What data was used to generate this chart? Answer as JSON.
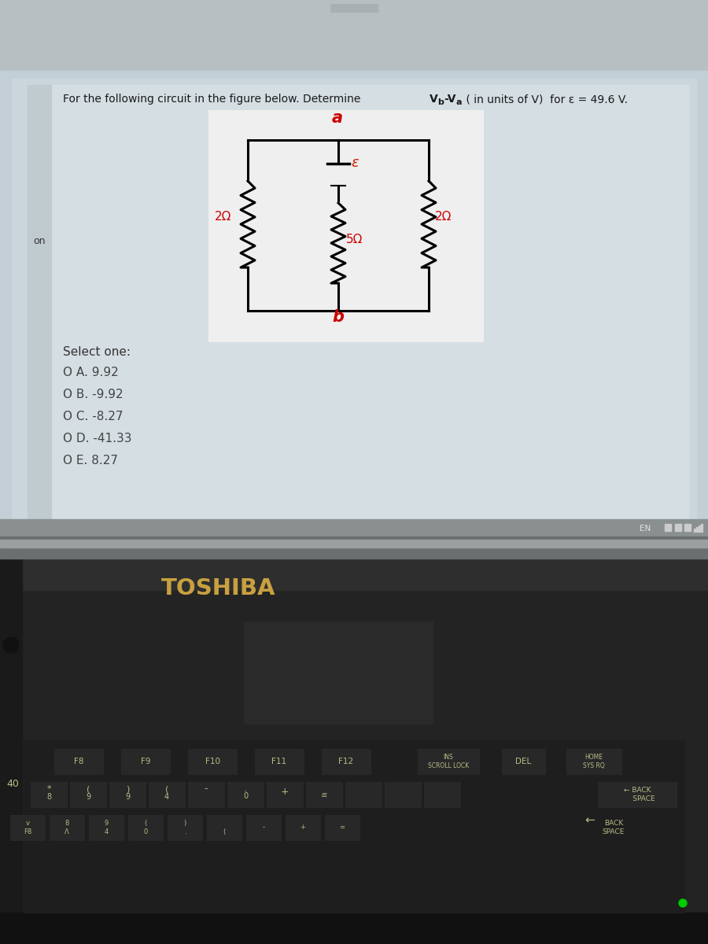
{
  "title_text": "For the following circuit in the figure below. Determine V",
  "title_bold_part": "b",
  "title_text2": "-V",
  "title_sub2": "a",
  "title_text3": " ( in units of V)  for ε = 49.6 V.",
  "bg_outer": "#c0c8cc",
  "bg_screen_inner": "#cdd8dc",
  "bg_content": "#d4dde2",
  "bg_quiz_area": "#c8d8e0",
  "bg_circuit_box": "#f2f2f2",
  "select_one": "Select one:",
  "options": [
    "O A. 9.92",
    "O B. -9.92",
    "O C. -8.27",
    "O D. -41.33",
    "O E. 8.27"
  ],
  "toshiba_text": "TOSHIBA",
  "toshiba_color": "#c8a040",
  "en_text": "EN",
  "circuit_line_color": "#000000",
  "label_a": "a",
  "label_b": "b",
  "label_epsilon": "ε",
  "label_2ohm_left": "2Ω",
  "label_2ohm_right": "2Ω",
  "label_5ohm": "5Ω",
  "on_label": "on",
  "keyboard_text_color": "#bbbb88",
  "fn_keys": [
    "F8",
    "F9",
    "F10",
    "F11",
    "F12"
  ],
  "fn_keys2": [
    "INS\nSCROLL LOCK",
    "DEL",
    "HOME\nSYS RQ"
  ],
  "back_space_text": "← BACK\n   SPACE"
}
